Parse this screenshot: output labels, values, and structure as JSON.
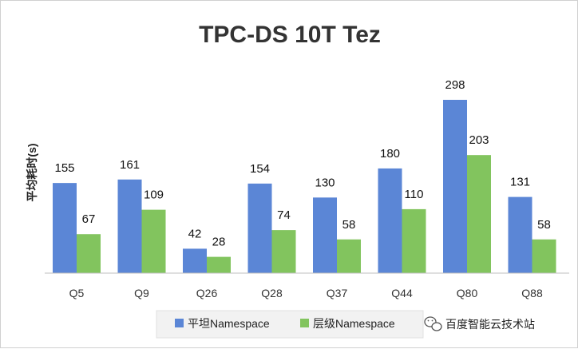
{
  "chart_data": {
    "type": "bar",
    "title": "TPC-DS 10T Tez",
    "ylabel": "平均耗时(s)",
    "xlabel": "",
    "categories": [
      "Q5",
      "Q9",
      "Q26",
      "Q28",
      "Q37",
      "Q44",
      "Q80",
      "Q88"
    ],
    "series": [
      {
        "name": "平坦Namespace",
        "color": "#5b86d6",
        "values": [
          155,
          161,
          42,
          154,
          130,
          180,
          298,
          131
        ]
      },
      {
        "name": "层级Namespace",
        "color": "#82c45e",
        "values": [
          67,
          109,
          28,
          74,
          58,
          110,
          203,
          58
        ]
      }
    ],
    "ylim": [
      0,
      310
    ],
    "grid": false,
    "legend_position": "bottom",
    "data_labels": true
  },
  "watermark": {
    "text": "百度智能云技术站",
    "icon": "wechat-icon"
  }
}
